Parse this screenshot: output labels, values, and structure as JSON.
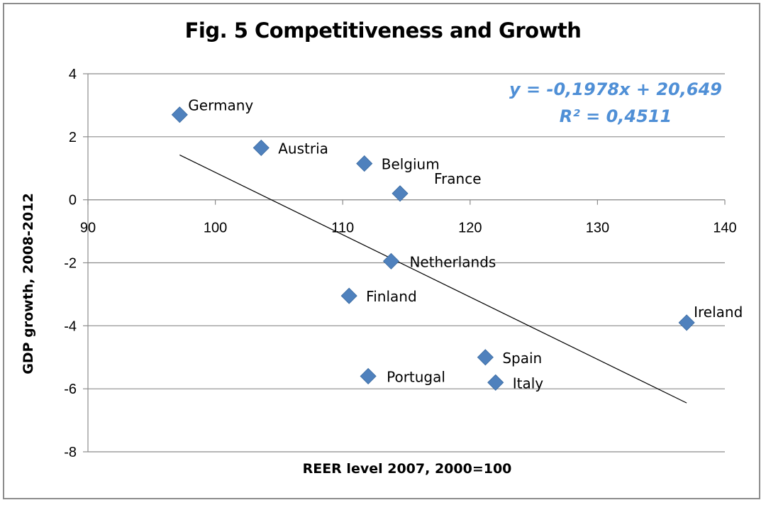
{
  "chart_data": {
    "type": "scatter",
    "title": "Fig. 5 Competitiveness and Growth",
    "xlabel": "REER level 2007, 2000=100",
    "ylabel": "GDP growth, 2008-2012",
    "xlim": [
      90,
      140
    ],
    "ylim": [
      -8,
      4
    ],
    "x_ticks": [
      "90",
      "100",
      "110",
      "120",
      "130",
      "140"
    ],
    "y_ticks": [
      "4",
      "2",
      "0",
      "-2",
      "-4",
      "-6",
      "-8"
    ],
    "grid": "horizontal",
    "marker": "diamond",
    "marker_color": "#4f81bd",
    "points": [
      {
        "label": "Germany",
        "x": 97.2,
        "y": 2.7
      },
      {
        "label": "Austria",
        "x": 103.6,
        "y": 1.65
      },
      {
        "label": "Belgium",
        "x": 111.7,
        "y": 1.15
      },
      {
        "label": "France",
        "x": 114.5,
        "y": 0.2
      },
      {
        "label": "Netherlands",
        "x": 113.8,
        "y": -1.95
      },
      {
        "label": "Finland",
        "x": 110.5,
        "y": -3.05
      },
      {
        "label": "Ireland",
        "x": 137.0,
        "y": -3.9
      },
      {
        "label": "Spain",
        "x": 121.2,
        "y": -5.0
      },
      {
        "label": "Portugal",
        "x": 112.0,
        "y": -5.6
      },
      {
        "label": "Italy",
        "x": 122.0,
        "y": -5.8
      }
    ],
    "trendline": {
      "type": "linear",
      "slope": -0.1978,
      "intercept": 20.649,
      "x_range": [
        97.2,
        137.0
      ],
      "equation_text": "y = -0,1978x + 20,649",
      "r2_text": "R² = 0,4511",
      "color": "#000000"
    }
  }
}
